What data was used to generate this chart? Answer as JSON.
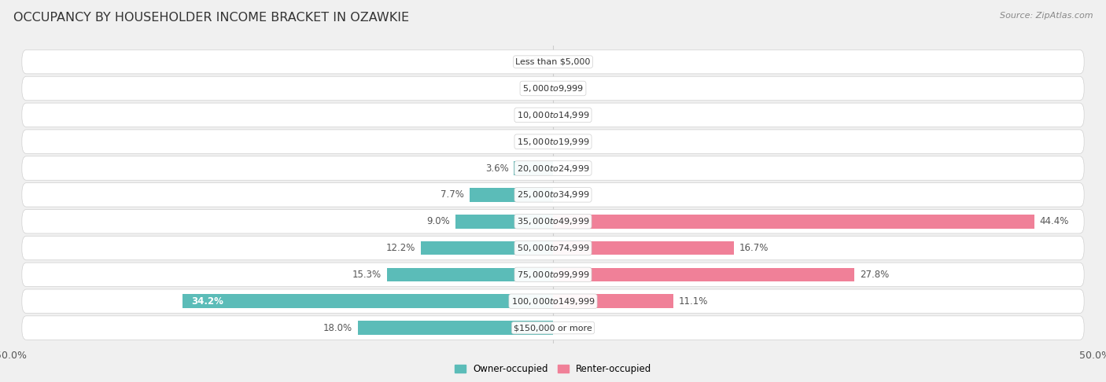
{
  "title": "OCCUPANCY BY HOUSEHOLDER INCOME BRACKET IN OZAWKIE",
  "source": "Source: ZipAtlas.com",
  "categories": [
    "Less than $5,000",
    "$5,000 to $9,999",
    "$10,000 to $14,999",
    "$15,000 to $19,999",
    "$20,000 to $24,999",
    "$25,000 to $34,999",
    "$35,000 to $49,999",
    "$50,000 to $74,999",
    "$75,000 to $99,999",
    "$100,000 to $149,999",
    "$150,000 or more"
  ],
  "owner_values": [
    0.0,
    0.0,
    0.0,
    0.0,
    3.6,
    7.7,
    9.0,
    12.2,
    15.3,
    34.2,
    18.0
  ],
  "renter_values": [
    0.0,
    0.0,
    0.0,
    0.0,
    0.0,
    0.0,
    44.4,
    16.7,
    27.8,
    11.1,
    0.0
  ],
  "owner_color": "#5bbcb8",
  "renter_color": "#f08098",
  "owner_color_dark": "#3a9a96",
  "owner_label": "Owner-occupied",
  "renter_label": "Renter-occupied",
  "axis_limit": 50.0,
  "bar_height": 0.52,
  "background_color": "#f0f0f0",
  "row_bg_color": "#e8e8e8",
  "row_fg_color": "#ffffff",
  "title_fontsize": 11.5,
  "label_fontsize": 8.5,
  "cat_fontsize": 8.0,
  "tick_fontsize": 9,
  "source_fontsize": 8.0
}
